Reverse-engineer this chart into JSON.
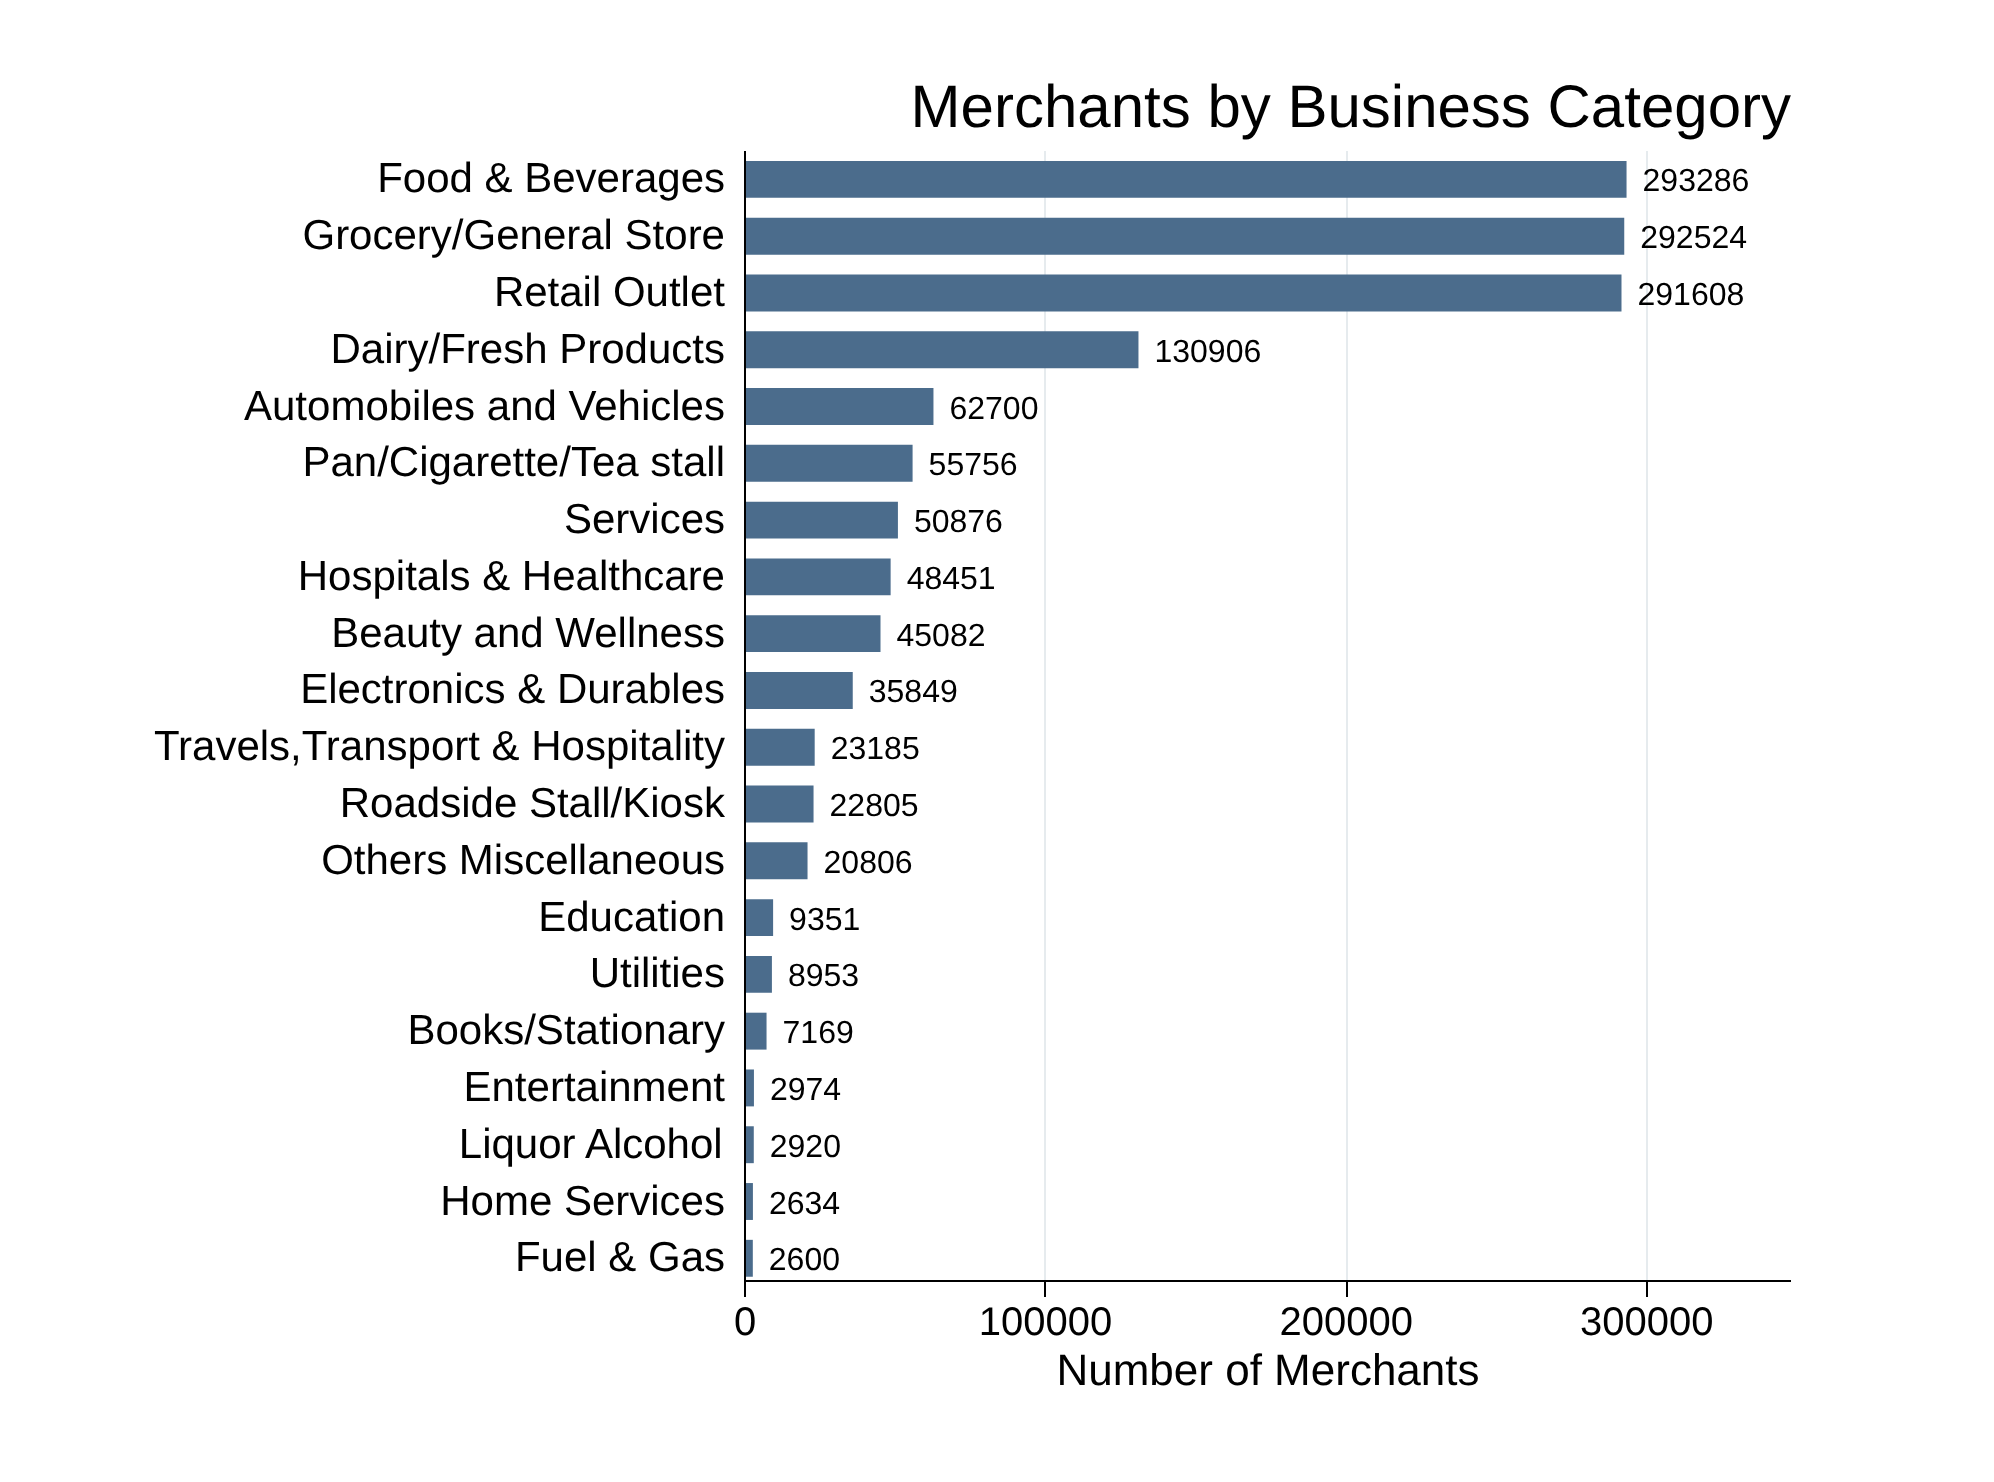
{
  "chart_data": {
    "type": "bar",
    "orientation": "horizontal",
    "title": "Merchants by Business Category",
    "xlabel": "Number of Merchants",
    "categories": [
      "Food & Beverages",
      "Grocery/General Store",
      "Retail Outlet",
      "Dairy/Fresh Products",
      "Automobiles and Vehicles",
      "Pan/Cigarette/Tea stall",
      "Services",
      "Hospitals & Healthcare",
      "Beauty and Wellness",
      "Electronics & Durables",
      "Travels,Transport & Hospitality",
      "Roadside Stall/Kiosk",
      "Others Miscellaneous",
      "Education",
      "Utilities",
      "Books/Stationary",
      "Entertainment",
      "Liquor Alcohol",
      "Home Services",
      "Fuel & Gas"
    ],
    "values": [
      293286,
      292524,
      291608,
      130906,
      62700,
      55756,
      50876,
      48451,
      45082,
      35849,
      23185,
      22805,
      20806,
      9351,
      8953,
      7169,
      2974,
      2920,
      2634,
      2600
    ],
    "color": "#4b6c8c",
    "xlim": [
      0,
      348000
    ],
    "xticks": [
      0,
      100000,
      200000,
      300000
    ],
    "grid": "x",
    "data_labels": true
  }
}
